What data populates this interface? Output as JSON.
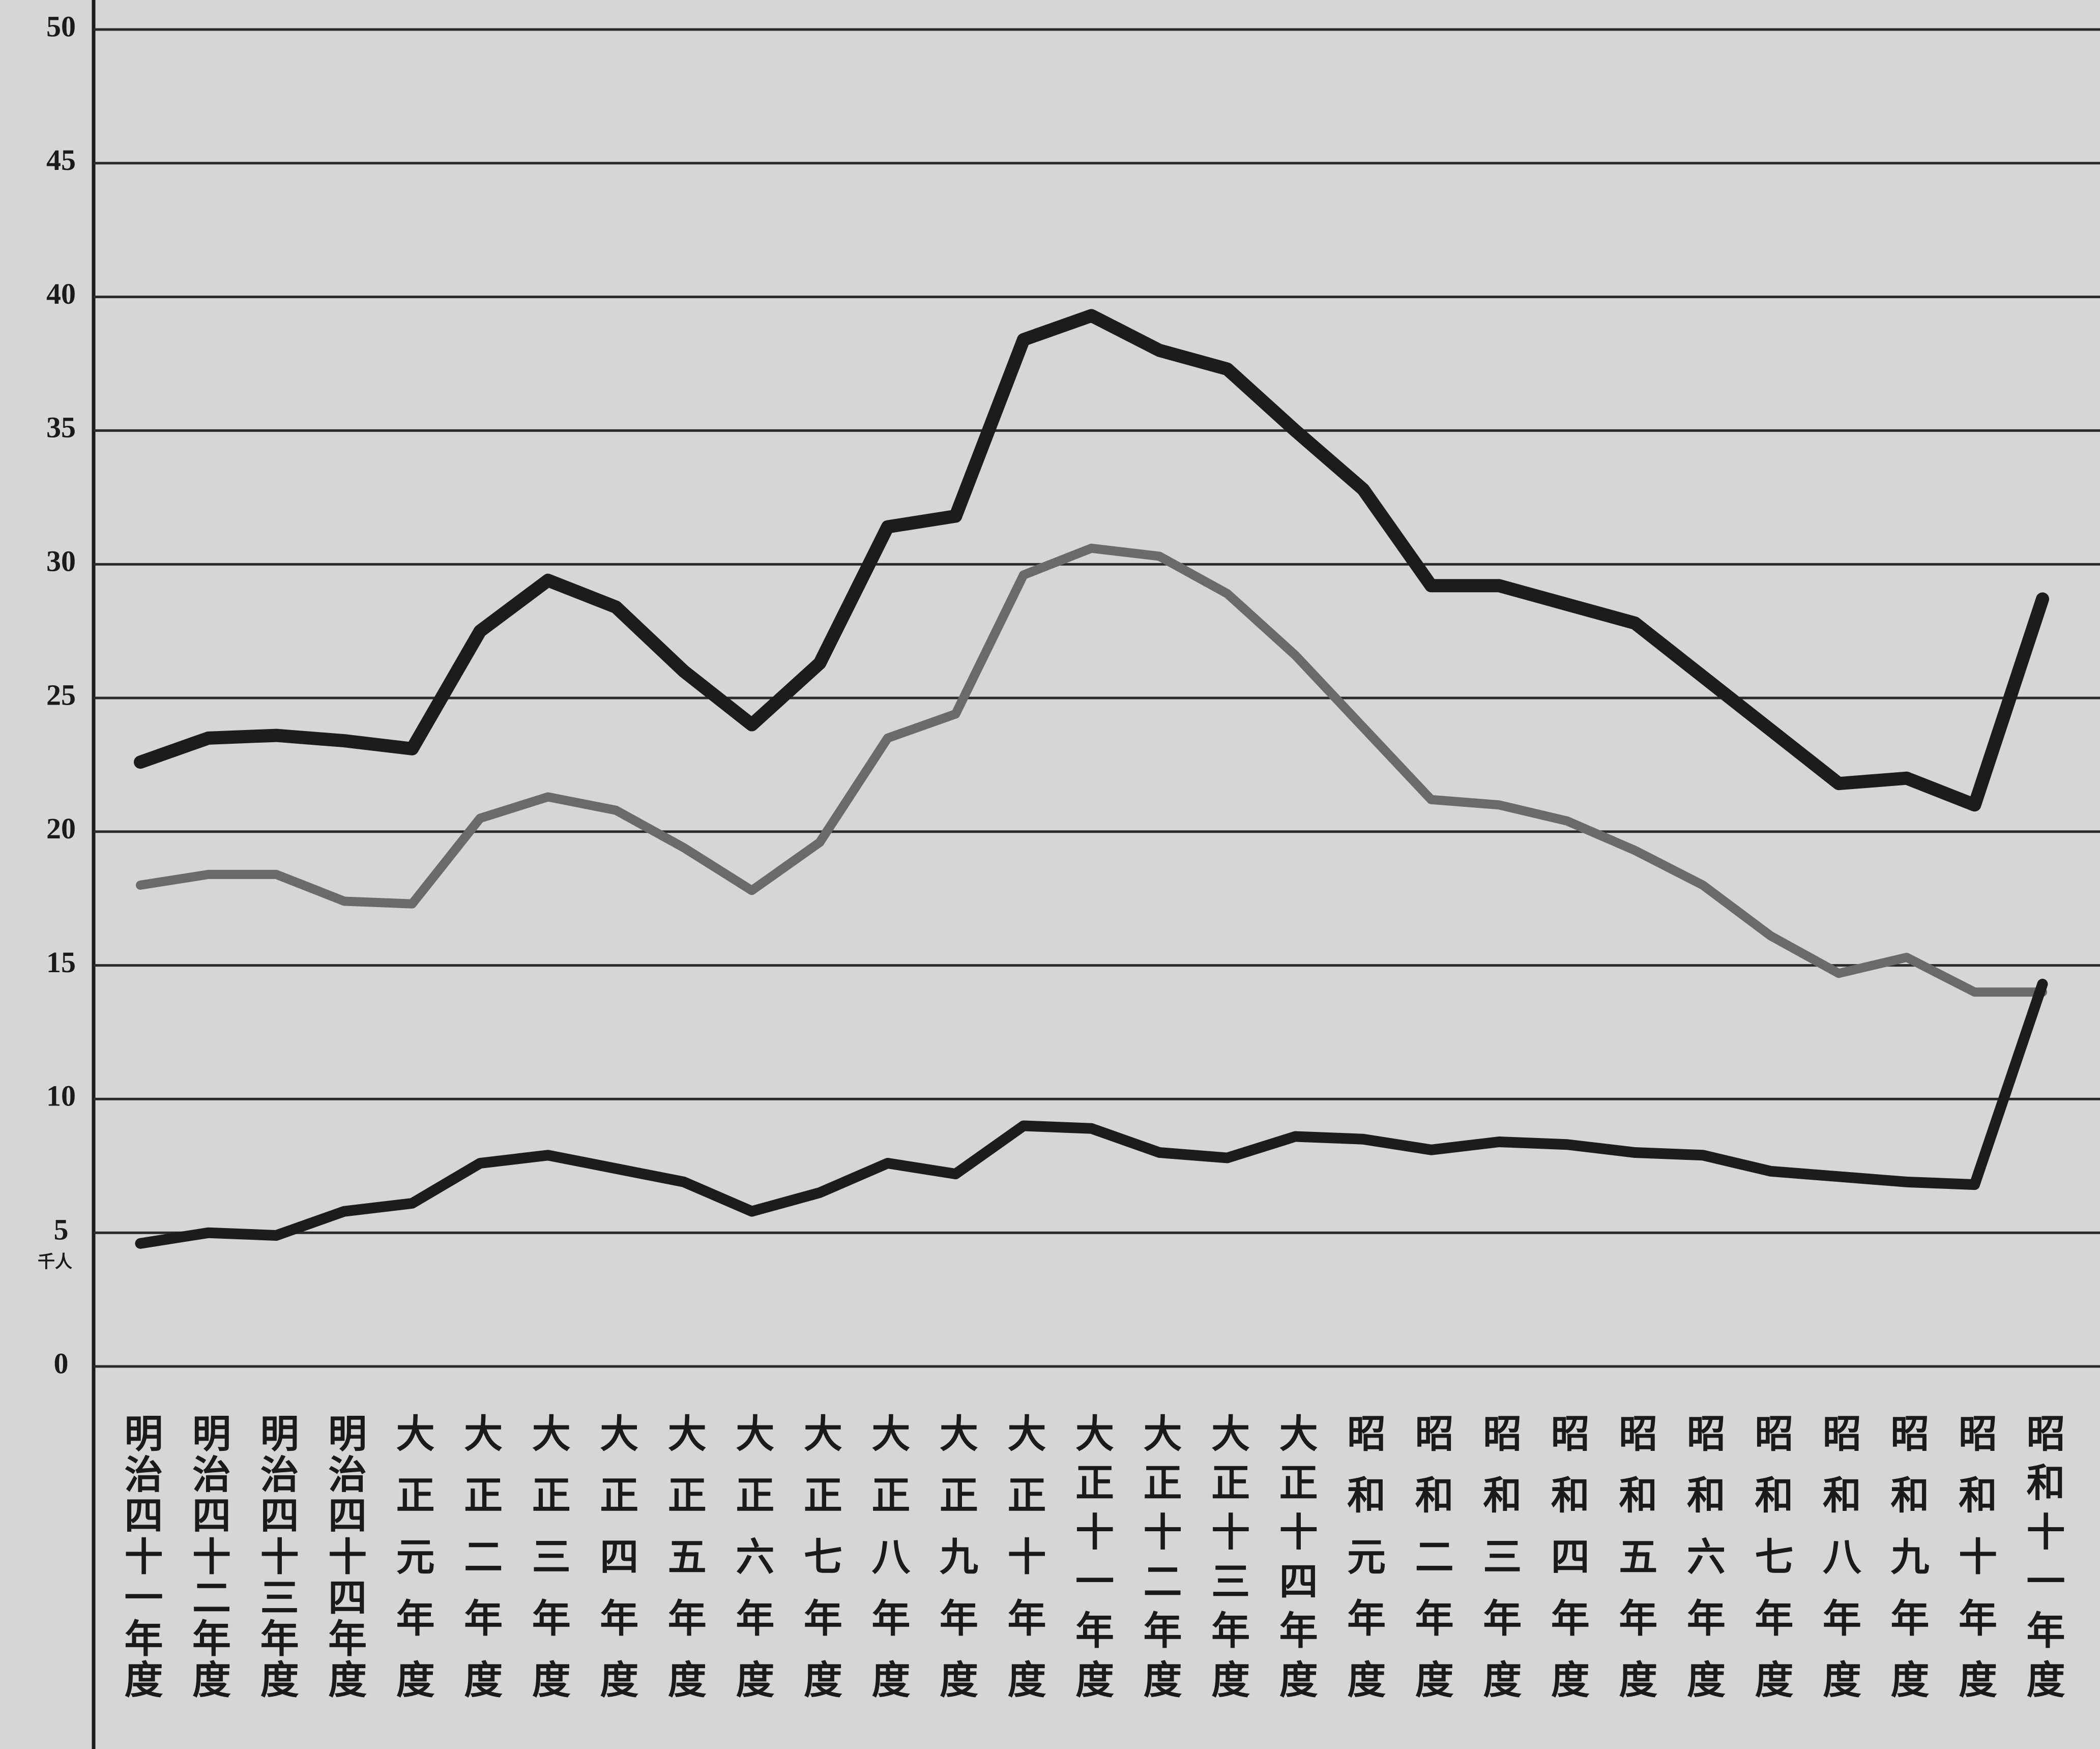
{
  "chart_data": {
    "type": "line",
    "categories": [
      "明治四十一年度",
      "明治四十二年度",
      "明治四十三年度",
      "明治四十四年度",
      "大正元年度",
      "大正二年度",
      "大正三年度",
      "大正四年度",
      "大正五年度",
      "大正六年度",
      "大正七年度",
      "大正八年度",
      "大正九年度",
      "大正十年度",
      "大正十一年度",
      "大正十二年度",
      "大正十三年度",
      "大正十四年度",
      "昭和元年度",
      "昭和二年度",
      "昭和三年度",
      "昭和四年度",
      "昭和五年度",
      "昭和六年度",
      "昭和七年度",
      "昭和八年度",
      "昭和九年度",
      "昭和十年度",
      "昭和十一年度"
    ],
    "series": [
      {
        "color": "#1c1c1c",
        "values": [
          22.6,
          23.5,
          23.6,
          23.4,
          23.1,
          27.5,
          29.4,
          28.4,
          26.0,
          24.0,
          26.3,
          31.4,
          31.8,
          38.4,
          39.3,
          38.0,
          37.3,
          35.0,
          32.8,
          29.2,
          29.2,
          28.5,
          27.8,
          25.8,
          23.8,
          21.8,
          22.0,
          21.0,
          28.7
        ]
      },
      {
        "color": "#6a6a6a",
        "values": [
          18.0,
          18.4,
          18.4,
          17.4,
          17.3,
          20.5,
          21.3,
          20.8,
          19.4,
          17.8,
          19.6,
          23.5,
          24.4,
          29.6,
          30.6,
          30.3,
          28.9,
          26.6,
          23.9,
          21.2,
          21.0,
          20.4,
          19.3,
          18.0,
          16.1,
          14.7,
          15.3,
          14.0,
          14.0
        ]
      },
      {
        "color": "#1c1c1c",
        "values": [
          4.6,
          5.0,
          4.9,
          5.8,
          6.1,
          7.6,
          7.9,
          7.4,
          6.9,
          5.8,
          6.5,
          7.6,
          7.2,
          9.0,
          8.9,
          8.0,
          7.8,
          8.6,
          8.5,
          8.1,
          8.4,
          8.3,
          8.0,
          7.9,
          7.3,
          7.1,
          6.9,
          6.8,
          14.3
        ]
      }
    ],
    "y_unit": "千人",
    "ylim": [
      0,
      50
    ],
    "yticks": [
      0,
      5,
      10,
      15,
      20,
      25,
      30,
      35,
      40,
      45,
      50
    ],
    "grid": true
  }
}
